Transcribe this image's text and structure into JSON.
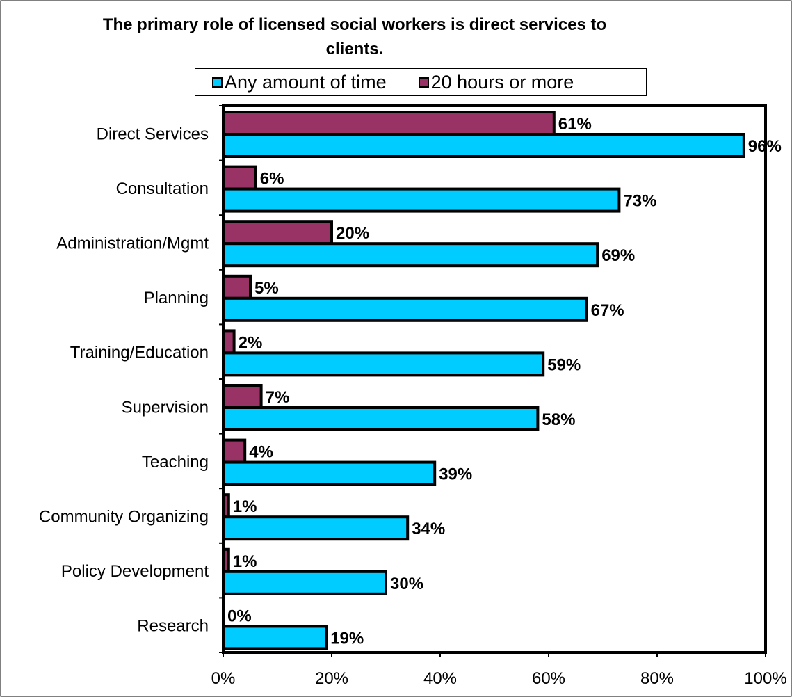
{
  "chart_data": {
    "type": "bar",
    "orientation": "horizontal",
    "title": "The primary role of licensed social workers is direct services to clients.",
    "categories": [
      "Direct Services",
      "Consultation",
      "Administration/Mgmt",
      "Planning",
      "Training/Education",
      "Supervision",
      "Teaching",
      "Community Organizing",
      "Policy Development",
      "Research"
    ],
    "series": [
      {
        "name": "20 hours or more",
        "color": "#993366",
        "values": [
          61,
          6,
          20,
          5,
          2,
          7,
          4,
          1,
          1,
          0
        ]
      },
      {
        "name": "Any amount of time",
        "color": "#00ccff",
        "values": [
          96,
          73,
          69,
          67,
          59,
          58,
          39,
          34,
          30,
          19
        ]
      }
    ],
    "value_suffix": "%",
    "xlim": [
      0,
      100
    ],
    "xticks": [
      "0%",
      "20%",
      "40%",
      "60%",
      "80%",
      "100%"
    ],
    "grid": false,
    "legend_position": "top",
    "legend": [
      {
        "label": "Any amount of time",
        "color": "#00ccff"
      },
      {
        "label": "20 hours or more",
        "color": "#993366"
      }
    ]
  }
}
